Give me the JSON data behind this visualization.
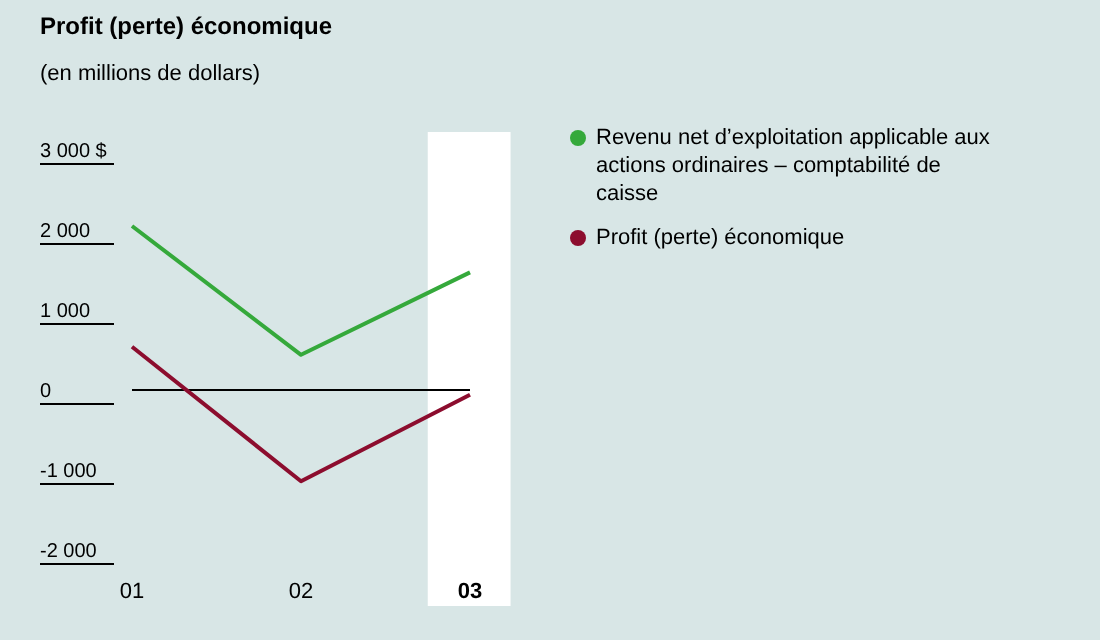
{
  "chart_data": {
    "type": "line",
    "title": "Profit (perte) économique",
    "subtitle": "(en millions de dollars)",
    "categories": [
      "01",
      "02",
      "03"
    ],
    "series": [
      {
        "name": "Revenu net d’exploitation applicable aux actions ordinaires – comptabilité de caisse",
        "color": "#35a93b",
        "values": [
          2050,
          440,
          1470
        ]
      },
      {
        "name": "Profit (perte) économique",
        "color": "#8c0d2e",
        "values": [
          540,
          -1140,
          -60
        ]
      }
    ],
    "ylim": [
      -2000,
      3000
    ],
    "yticks": [
      {
        "value": 3000,
        "label": "3 000 $"
      },
      {
        "value": 2000,
        "label": "2 000"
      },
      {
        "value": 1000,
        "label": "1 000"
      },
      0,
      {
        "value": -1000,
        "label": "-1 000"
      },
      {
        "value": -2000,
        "label": "-2 000"
      }
    ],
    "ref_lines": [
      {
        "axis": "y",
        "value": 0,
        "color": "#000000"
      }
    ],
    "bands": [
      {
        "axis": "x",
        "from": "03",
        "to": "03",
        "color": "#ffffff"
      }
    ],
    "grid": false,
    "legend": "right",
    "marker": "none",
    "line_style": "solid"
  }
}
